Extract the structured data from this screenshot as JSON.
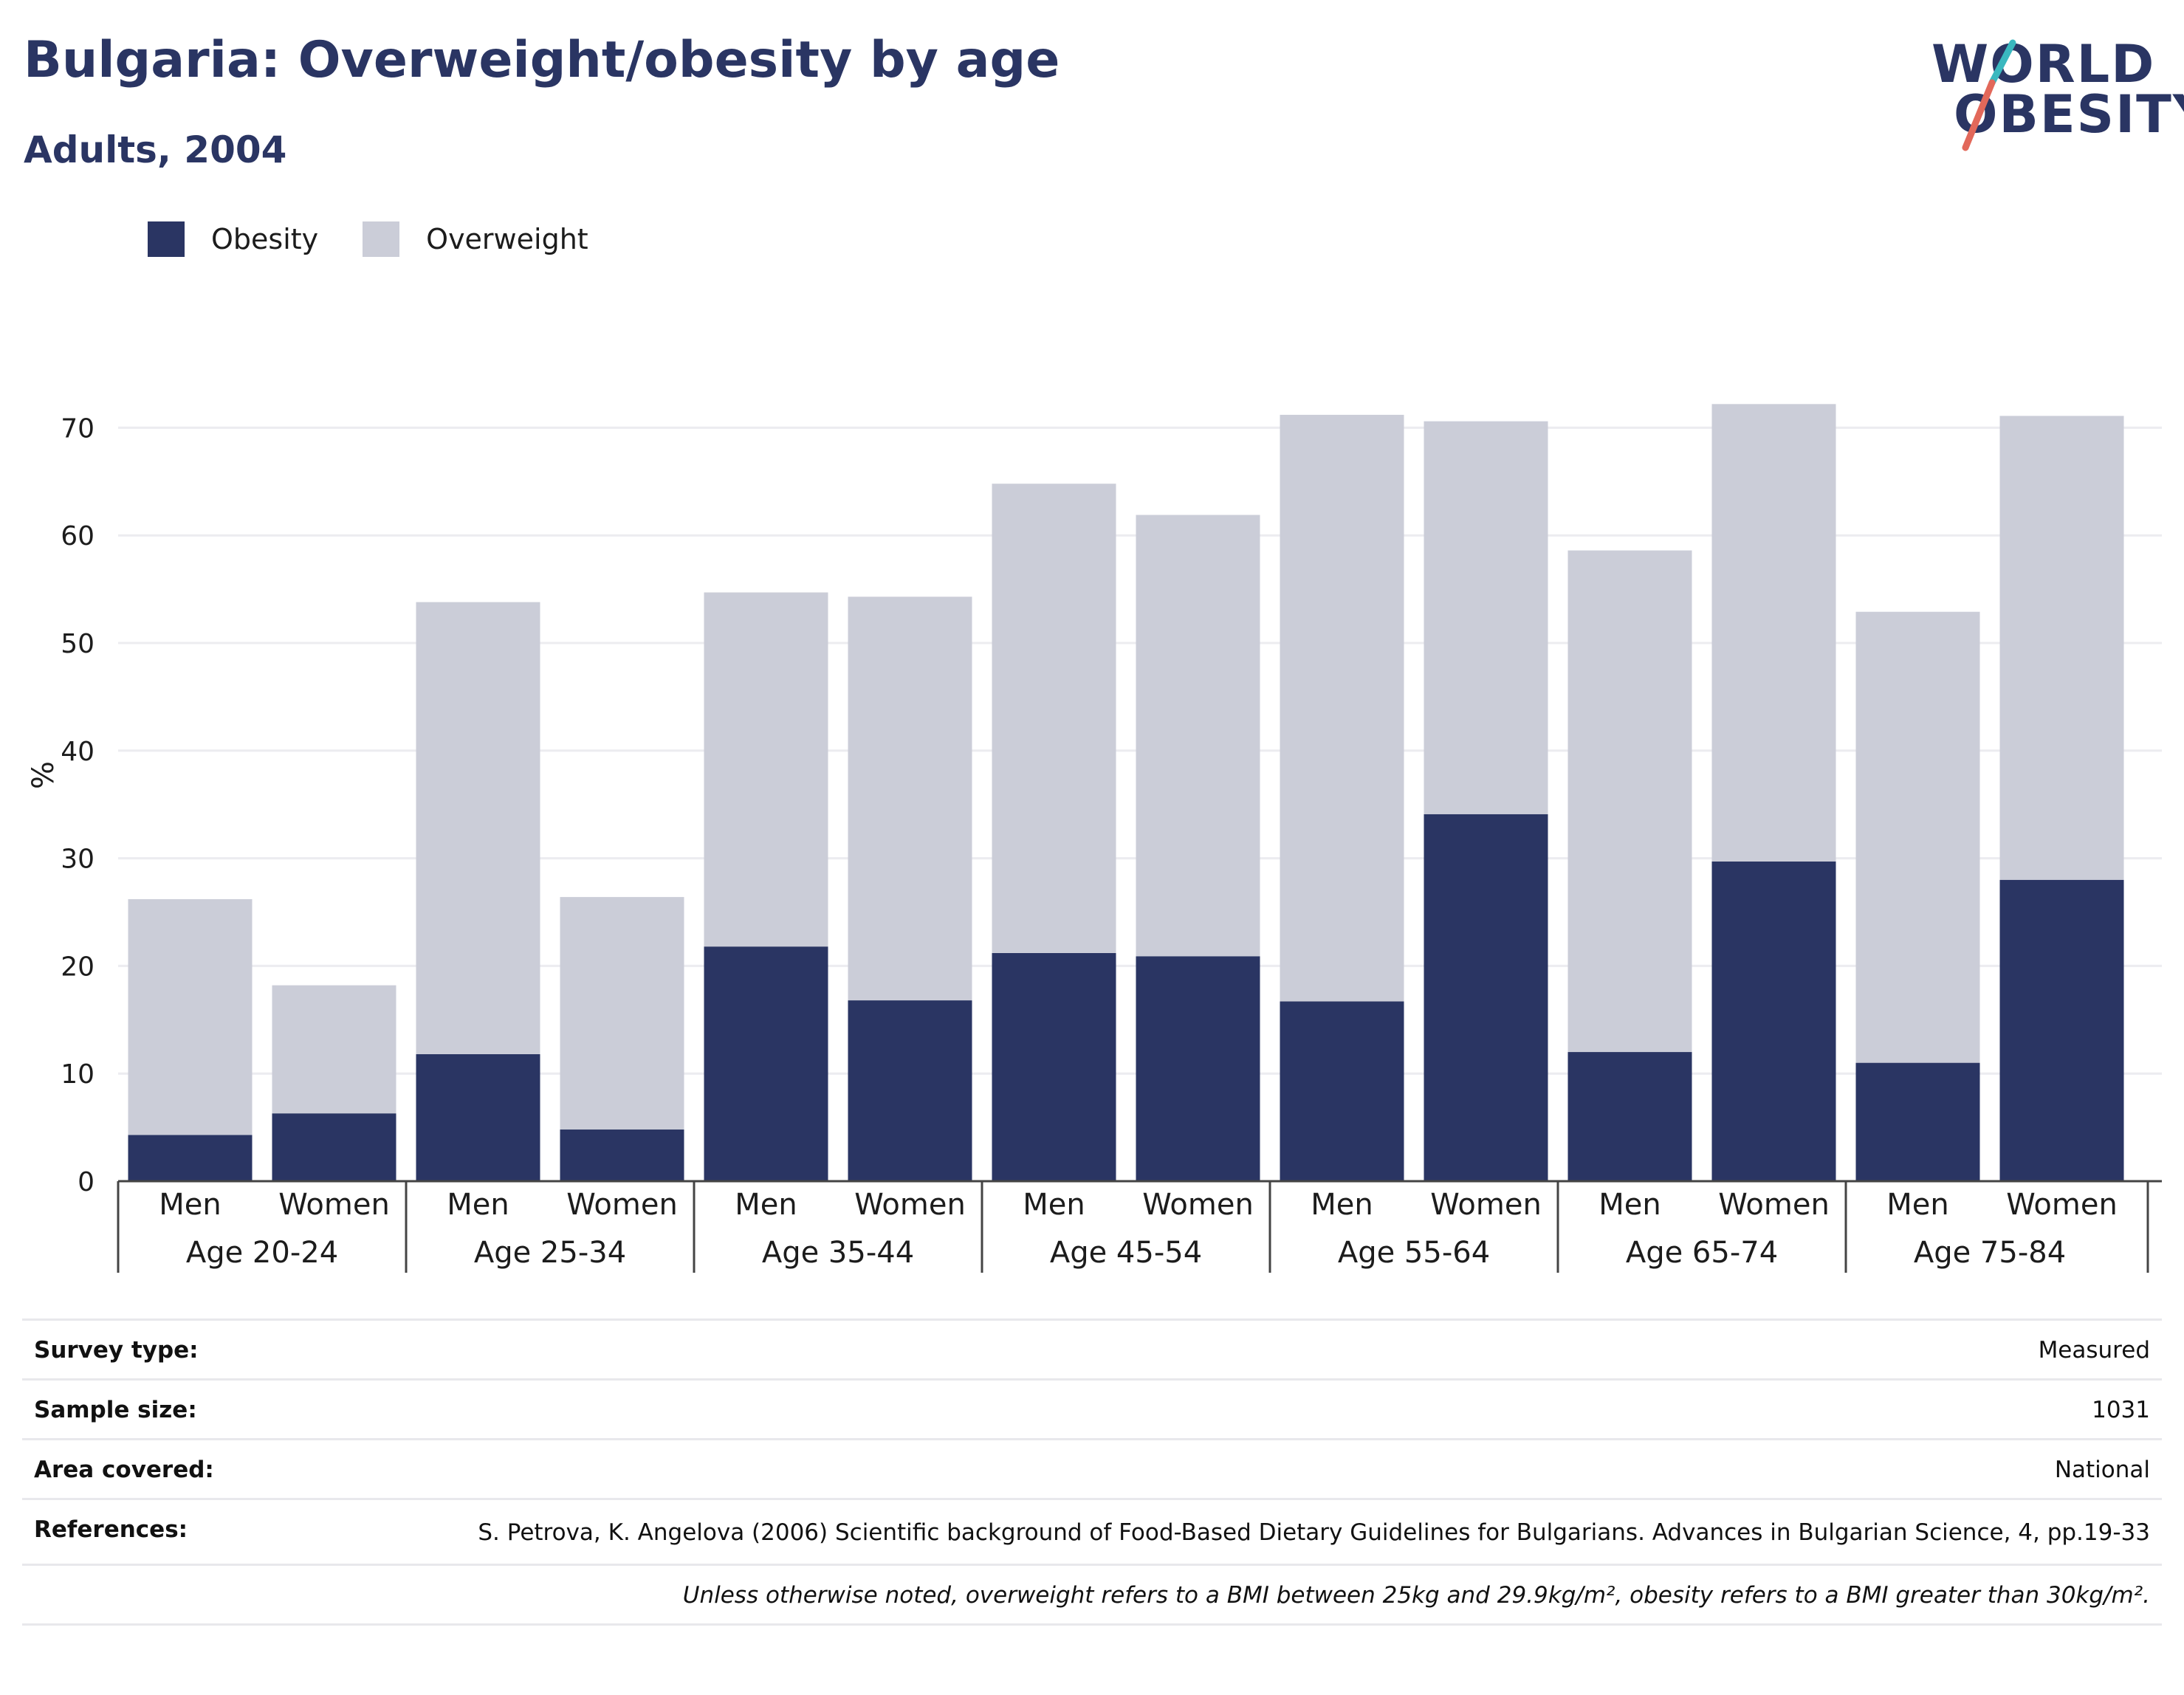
{
  "header": {
    "title": "Bulgaria: Overweight/obesity by age",
    "subtitle": "Adults, 2004"
  },
  "logo": {
    "line1": "WORLD",
    "line2": "OBESITY",
    "text_color": "#2a3563",
    "slash_colors": [
      "#3ab8bf",
      "#e2685a"
    ]
  },
  "legend": [
    {
      "label": "Obesity",
      "color": "#2a3563"
    },
    {
      "label": "Overweight",
      "color": "#cbcdd8"
    }
  ],
  "chart_data": {
    "type": "bar",
    "stacked": true,
    "ylabel": "%",
    "ylim": [
      0,
      75
    ],
    "yticks": [
      0,
      10,
      20,
      30,
      40,
      50,
      60,
      70
    ],
    "grid": true,
    "legend_position": "top-left",
    "groups": [
      "Age 20-24",
      "Age 25-34",
      "Age 35-44",
      "Age 45-54",
      "Age 55-64",
      "Age 65-74",
      "Age 75-84"
    ],
    "subcategories": [
      "Men",
      "Women"
    ],
    "series": [
      {
        "name": "Obesity",
        "color": "#2a3563",
        "values": [
          4.3,
          6.3,
          11.8,
          4.8,
          21.8,
          16.8,
          21.2,
          20.9,
          16.7,
          34.1,
          12.0,
          29.7,
          11.0,
          28.0
        ]
      },
      {
        "name": "Overweight",
        "color": "#cbcdd8",
        "values": [
          21.9,
          11.9,
          42.0,
          21.6,
          32.9,
          37.5,
          43.6,
          41.0,
          54.5,
          36.5,
          46.6,
          42.5,
          41.9,
          43.1
        ]
      }
    ]
  },
  "info": {
    "survey_type": {
      "label": "Survey type:",
      "value": "Measured"
    },
    "sample_size": {
      "label": "Sample size:",
      "value": "1031"
    },
    "area_covered": {
      "label": "Area covered:",
      "value": "National"
    },
    "references": {
      "label": "References:",
      "value": "S. Petrova, K. Angelova (2006) Scientific background of Food-Based Dietary Guidelines for Bulgarians. Advances in Bulgarian Science, 4, pp.19-33"
    },
    "note": "Unless otherwise noted, overweight refers to a BMI between 25kg and 29.9kg/m², obesity refers to a BMI greater than 30kg/m²."
  }
}
